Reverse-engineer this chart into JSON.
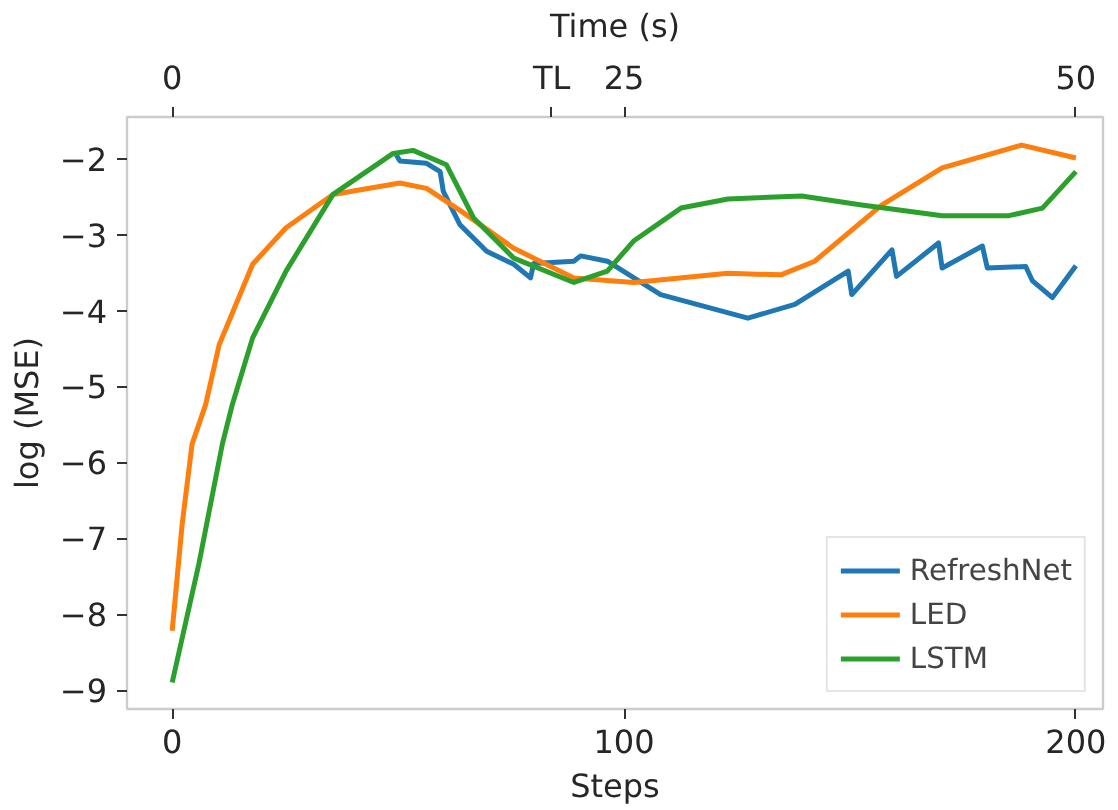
{
  "chart_data": {
    "type": "line",
    "xlabel": "Steps",
    "ylabel": "log (MSE)",
    "x2label": "Time (s)",
    "xlim": [
      -10,
      206
    ],
    "xticks": [
      0,
      100,
      200
    ],
    "ylim": [
      -9.25,
      -1.45
    ],
    "yticks": [
      -9,
      -8,
      -7,
      -6,
      -5,
      -4,
      -3,
      -2
    ],
    "x2lim": [
      -2.5,
      51.5
    ],
    "x2ticks": [
      0,
      {
        "value": 21,
        "label": "TL"
      },
      25,
      50
    ],
    "grid": false,
    "legend": "bottom right",
    "line_style": "solid",
    "marker": "none",
    "series": [
      {
        "name": "RefreshNet",
        "color": "#1f77b4",
        "x": [
          49.6,
          50.4,
          56.3,
          59.3,
          60,
          63.7,
          69.6,
          75.6,
          79.3,
          80,
          88.9,
          90.4,
          96.3,
          102.2,
          108.1,
          127.4,
          137.8,
          149.6,
          150.4,
          159.3,
          160.3,
          169.6,
          170.4,
          179.3,
          180.4,
          188.9,
          190.4,
          194.8,
          200
        ],
        "values": [
          -1.95,
          -2.03,
          -2.06,
          -2.17,
          -2.43,
          -2.87,
          -3.22,
          -3.39,
          -3.57,
          -3.38,
          -3.35,
          -3.28,
          -3.35,
          -3.57,
          -3.79,
          -4.1,
          -3.92,
          -3.48,
          -3.79,
          -3.2,
          -3.55,
          -3.11,
          -3.44,
          -3.15,
          -3.44,
          -3.42,
          -3.61,
          -3.83,
          -3.41
        ]
      },
      {
        "name": "LED",
        "color": "#ff7f0e",
        "x": [
          0,
          2.2,
          4.4,
          7.4,
          10.4,
          17.8,
          25.2,
          35.6,
          50.4,
          56.3,
          63.7,
          75.6,
          88.9,
          102.2,
          123,
          134.7,
          142.2,
          157,
          170.4,
          188,
          200
        ],
        "values": [
          -8.22,
          -6.82,
          -5.76,
          -5.24,
          -4.45,
          -3.39,
          -2.91,
          -2.47,
          -2.32,
          -2.39,
          -2.68,
          -3.18,
          -3.57,
          -3.63,
          -3.51,
          -3.53,
          -3.35,
          -2.61,
          -2.12,
          -1.82,
          -1.99
        ]
      },
      {
        "name": "LSTM",
        "color": "#2ca02c",
        "x": [
          0,
          5.9,
          11.1,
          13.3,
          17.8,
          25.2,
          35.6,
          48.9,
          53.3,
          60.7,
          66.7,
          75.6,
          88.9,
          96.3,
          102.2,
          112.6,
          123,
          139.3,
          152.6,
          170.4,
          185.2,
          192.6,
          200
        ],
        "values": [
          -8.9,
          -7.34,
          -5.76,
          -5.24,
          -4.36,
          -3.48,
          -2.47,
          -1.93,
          -1.89,
          -2.08,
          -2.78,
          -3.31,
          -3.63,
          -3.48,
          -3.08,
          -2.65,
          -2.53,
          -2.49,
          -2.61,
          -2.75,
          -2.75,
          -2.65,
          -2.17
        ]
      }
    ]
  }
}
